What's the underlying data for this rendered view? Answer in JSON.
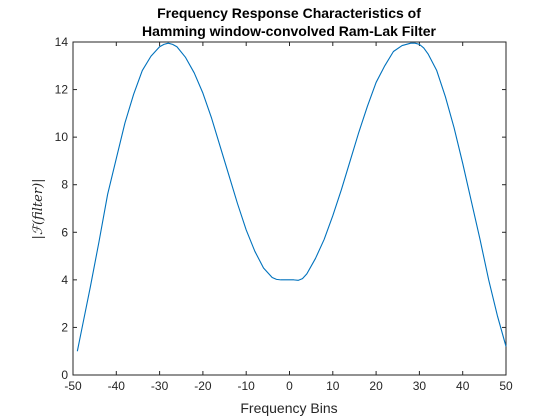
{
  "chart_data": {
    "type": "line",
    "title": [
      "Frequency Response Characteristics of",
      "Hamming window-convolved Ram-Lak Filter"
    ],
    "xlabel": "Frequency Bins",
    "ylabel": "|ℱ(filter)|",
    "xlim": [
      -50,
      50
    ],
    "ylim": [
      0,
      14
    ],
    "xticks": [
      -50,
      -40,
      -30,
      -20,
      -10,
      0,
      10,
      20,
      30,
      40,
      50
    ],
    "yticks": [
      0,
      2,
      4,
      6,
      8,
      10,
      12,
      14
    ],
    "xtick_labels": [
      "-50",
      "-40",
      "-30",
      "-20",
      "-10",
      "0",
      "10",
      "20",
      "30",
      "40",
      "50"
    ],
    "ytick_labels": [
      "0",
      "2",
      "4",
      "6",
      "8",
      "10",
      "12",
      "14"
    ],
    "grid": false,
    "series": [
      {
        "color": "#0072bd",
        "x": [
          -49,
          -48,
          -46,
          -44,
          -42,
          -40,
          -38,
          -36,
          -34,
          -32,
          -30,
          -29,
          -28,
          -27,
          -26,
          -24,
          -22,
          -20,
          -18,
          -16,
          -14,
          -12,
          -10,
          -8,
          -6,
          -4,
          -3,
          -2,
          -1,
          0,
          1,
          2,
          3,
          4,
          6,
          8,
          10,
          12,
          14,
          16,
          18,
          20,
          22,
          24,
          26,
          28,
          29,
          30,
          31,
          32,
          34,
          36,
          38,
          40,
          42,
          44,
          46,
          48,
          50
        ],
        "y": [
          1.0,
          1.9,
          3.7,
          5.6,
          7.6,
          9.1,
          10.6,
          11.8,
          12.8,
          13.4,
          13.8,
          13.9,
          13.95,
          13.9,
          13.8,
          13.35,
          12.7,
          11.85,
          10.8,
          9.6,
          8.4,
          7.2,
          6.1,
          5.2,
          4.5,
          4.1,
          4.02,
          4.0,
          4.0,
          4.0,
          4.0,
          3.98,
          4.05,
          4.25,
          4.9,
          5.7,
          6.7,
          7.8,
          9.0,
          10.2,
          11.3,
          12.3,
          13.0,
          13.6,
          13.85,
          13.95,
          13.95,
          13.9,
          13.75,
          13.5,
          12.8,
          11.7,
          10.4,
          8.9,
          7.3,
          5.7,
          4.0,
          2.5,
          1.2
        ]
      }
    ]
  }
}
